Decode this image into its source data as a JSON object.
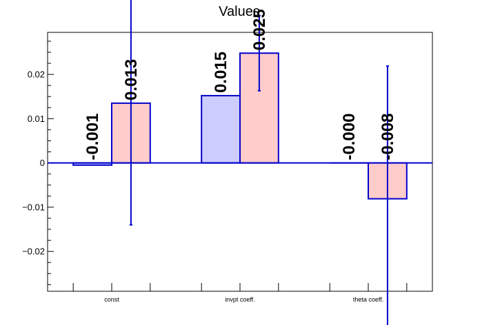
{
  "chart_data": {
    "type": "bar",
    "title": "Values",
    "categories": [
      "const",
      "invpt coeff.",
      "theta coeff."
    ],
    "ylim": [
      -0.029,
      0.0295
    ],
    "yticks": [
      -0.02,
      -0.01,
      0,
      0.01,
      0.02
    ],
    "ytick_labels": [
      "−0.02",
      "−0.01",
      "0",
      "0.01",
      "0.02"
    ],
    "grid": false,
    "series": [
      {
        "fill": "#ccccff",
        "stroke": "#0000cc",
        "values": [
          -0.0005,
          0.0152,
          0.0
        ],
        "errors": [
          null,
          null,
          null
        ],
        "value_labels": [
          "-0.001",
          "0.015",
          "-0.000"
        ]
      },
      {
        "fill": "#ffcccc",
        "stroke": "#0000cc",
        "values": [
          0.0135,
          0.0248,
          -0.0081
        ],
        "errors": [
          0.0275,
          0.0085,
          0.03
        ],
        "value_labels": [
          "0.013",
          "0.025",
          "-0.008"
        ]
      }
    ]
  }
}
